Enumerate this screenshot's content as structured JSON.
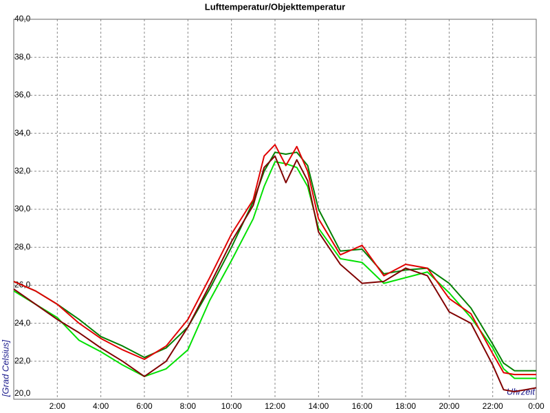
{
  "chart_data": {
    "type": "line",
    "title": "Lufttemperatur/Objekttemperatur",
    "y_label": "[Grad Celsius]",
    "x_label": "Uhrzeit",
    "x": [
      0,
      1,
      2,
      3,
      4,
      5,
      6,
      7,
      8,
      9,
      10,
      11,
      11.5,
      12,
      12.5,
      13,
      13.5,
      14,
      15,
      16,
      17,
      18,
      19,
      20,
      21,
      22,
      22.5,
      23,
      24
    ],
    "xlim": [
      0,
      24
    ],
    "xticks": [
      {
        "value": 2,
        "label": "2:00"
      },
      {
        "value": 4,
        "label": "4:00"
      },
      {
        "value": 6,
        "label": "6:00"
      },
      {
        "value": 8,
        "label": "8:00"
      },
      {
        "value": 10,
        "label": "10:00"
      },
      {
        "value": 12,
        "label": "12:00"
      },
      {
        "value": 14,
        "label": "14:00"
      },
      {
        "value": 16,
        "label": "16:00"
      },
      {
        "value": 18,
        "label": "18:00"
      },
      {
        "value": 20,
        "label": "20:00"
      },
      {
        "value": 22,
        "label": "22:00"
      },
      {
        "value": 24,
        "label": "0:00"
      }
    ],
    "ylim": [
      20,
      40
    ],
    "yticks": [
      {
        "value": 20,
        "label": "20,0"
      },
      {
        "value": 22,
        "label": "22,0"
      },
      {
        "value": 24,
        "label": "24,0"
      },
      {
        "value": 26,
        "label": "26,0"
      },
      {
        "value": 28,
        "label": "28,0"
      },
      {
        "value": 30,
        "label": "30,0"
      },
      {
        "value": 32,
        "label": "32,0"
      },
      {
        "value": 34,
        "label": "34,0"
      },
      {
        "value": 36,
        "label": "36,0"
      },
      {
        "value": 38,
        "label": "38,0"
      },
      {
        "value": 40,
        "label": "40,0"
      }
    ],
    "grid": true,
    "series": [
      {
        "color": "#008000",
        "values": [
          26.2,
          25.7,
          25.0,
          24.2,
          23.3,
          22.8,
          22.2,
          22.7,
          23.8,
          25.8,
          28.0,
          30.4,
          32.0,
          33.0,
          32.9,
          33.0,
          32.3,
          30.0,
          27.8,
          27.9,
          26.6,
          26.8,
          26.9,
          26.1,
          24.8,
          22.9,
          21.9,
          21.5,
          21.5
        ]
      },
      {
        "color": "#00e000",
        "values": [
          25.7,
          25.0,
          24.3,
          23.1,
          22.5,
          21.8,
          21.2,
          21.6,
          22.6,
          25.2,
          27.3,
          29.5,
          31.2,
          32.5,
          32.4,
          32.2,
          31.2,
          29.0,
          27.4,
          27.2,
          26.1,
          26.4,
          26.7,
          25.6,
          24.3,
          22.7,
          21.6,
          21.1,
          21.1
        ]
      },
      {
        "color": "#800000",
        "values": [
          25.8,
          25.0,
          24.2,
          23.5,
          22.7,
          22.0,
          21.2,
          22.0,
          23.8,
          26.0,
          28.3,
          30.2,
          32.2,
          32.8,
          31.4,
          32.6,
          31.5,
          28.8,
          27.1,
          26.1,
          26.2,
          26.9,
          26.5,
          24.6,
          24.0,
          21.8,
          20.5,
          20.4,
          20.6
        ]
      },
      {
        "color": "#e00000",
        "values": [
          26.2,
          25.7,
          25.0,
          24.0,
          23.2,
          22.6,
          22.1,
          22.8,
          24.2,
          26.4,
          28.7,
          30.5,
          32.8,
          33.4,
          32.3,
          33.3,
          32.0,
          29.5,
          27.6,
          28.1,
          26.5,
          27.1,
          26.9,
          25.3,
          24.5,
          22.4,
          21.4,
          21.3,
          21.3
        ]
      }
    ]
  }
}
